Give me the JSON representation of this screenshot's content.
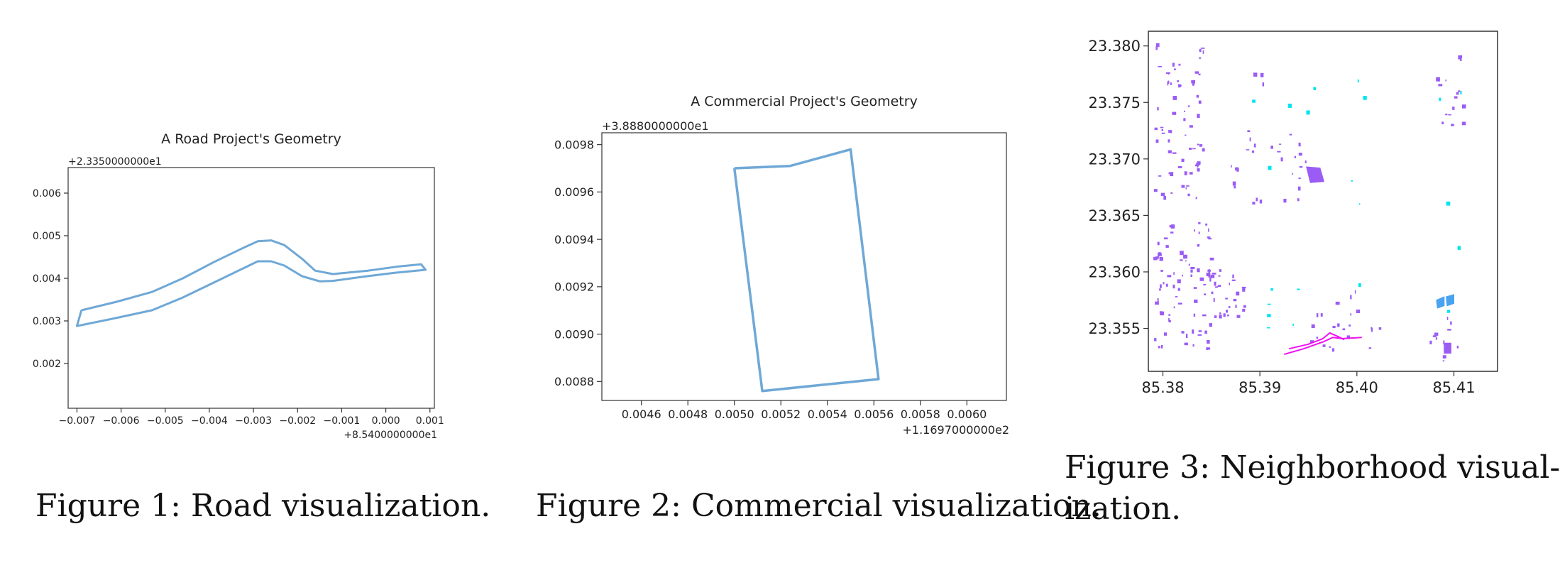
{
  "captions": {
    "fig1": "Figure 1: Road visualization.",
    "fig2": "Figure 2: Commercial visualization.",
    "fig3_line1": "Figure 3: Neighborhood visual-",
    "fig3_line2": "ization."
  },
  "colors": {
    "outline": "#6fa8d6",
    "neighborhood_purple": "#9a5cf5",
    "neighborhood_cyan": "#00e5f0",
    "neighborhood_blue": "#4aa3f0",
    "neighborhood_magenta": "#f010f0"
  },
  "chart_data": [
    {
      "type": "line",
      "title": "A Road Project's Geometry",
      "x_offset_label": "+8.5400000000e1",
      "y_offset_label": "+2.3350000000e1",
      "xlim": [
        -0.0072,
        0.0011
      ],
      "ylim": [
        0.00095,
        0.0066
      ],
      "x_ticks": [
        -0.007,
        -0.006,
        -0.005,
        -0.004,
        -0.003,
        -0.002,
        -0.001,
        0.0,
        0.001
      ],
      "x_tick_labels": [
        "−0.007",
        "−0.006",
        "−0.005",
        "−0.004",
        "−0.003",
        "−0.002",
        "−0.001",
        "0.000",
        "0.001"
      ],
      "y_ticks": [
        0.002,
        0.003,
        0.004,
        0.005,
        0.006
      ],
      "y_tick_labels": [
        "0.002",
        "0.003",
        "0.004",
        "0.005",
        "0.006"
      ],
      "series": [
        {
          "x": [
            -0.0069,
            -0.0061,
            -0.0053,
            -0.0046,
            -0.0039,
            -0.0032,
            -0.0029,
            -0.0026,
            -0.0023,
            -0.0019,
            -0.0016,
            -0.0012,
            -0.0004,
            0.0003,
            0.0008,
            0.0009,
            0.0002,
            -0.0005,
            -0.0012,
            -0.0015,
            -0.0019,
            -0.0023,
            -0.0026,
            -0.0029,
            -0.0032,
            -0.0039,
            -0.0046,
            -0.0053,
            -0.0062,
            -0.007,
            -0.0069
          ],
          "y": [
            0.00325,
            0.00345,
            0.00368,
            0.004,
            0.00438,
            0.00473,
            0.00487,
            0.00489,
            0.00478,
            0.00446,
            0.00418,
            0.0041,
            0.00418,
            0.00428,
            0.00433,
            0.0042,
            0.00413,
            0.00404,
            0.00394,
            0.00393,
            0.00405,
            0.0043,
            0.0044,
            0.0044,
            0.00425,
            0.0039,
            0.00355,
            0.00325,
            0.00305,
            0.00288,
            0.00325
          ]
        }
      ]
    },
    {
      "type": "line",
      "title": "A Commercial Project's Geometry",
      "x_offset_label": "+1.1697000000e2",
      "y_offset_label": "+3.8880000000e1",
      "xlim": [
        0.00443,
        0.00617
      ],
      "ylim": [
        0.00872,
        0.00985
      ],
      "x_ticks": [
        0.0046,
        0.0048,
        0.005,
        0.0052,
        0.0054,
        0.0056,
        0.0058,
        0.006
      ],
      "x_tick_labels": [
        "0.0046",
        "0.0048",
        "0.0050",
        "0.0052",
        "0.0054",
        "0.0056",
        "0.0058",
        "0.0060"
      ],
      "y_ticks": [
        0.0088,
        0.009,
        0.0092,
        0.0094,
        0.0096,
        0.0098
      ],
      "y_tick_labels": [
        "0.0088",
        "0.0090",
        "0.0092",
        "0.0094",
        "0.0096",
        "0.0098"
      ],
      "series": [
        {
          "x": [
            0.005,
            0.00524,
            0.0055,
            0.00562,
            0.00512,
            0.005
          ],
          "y": [
            0.0097,
            0.00971,
            0.00978,
            0.00881,
            0.00876,
            0.0097
          ]
        }
      ]
    },
    {
      "type": "scatter",
      "title": "",
      "xlim": [
        85.3785,
        85.4145
      ],
      "ylim": [
        23.3512,
        23.3813
      ],
      "x_ticks": [
        85.38,
        85.39,
        85.4,
        85.41
      ],
      "x_tick_labels": [
        "85.38",
        "85.39",
        "85.40",
        "85.41"
      ],
      "y_ticks": [
        23.355,
        23.36,
        23.365,
        23.37,
        23.375,
        23.38
      ],
      "y_tick_labels": [
        "23.355",
        "23.360",
        "23.365",
        "23.370",
        "23.375",
        "23.380"
      ],
      "clusters": [
        {
          "color": "purple",
          "x_range": [
            85.3792,
            85.3842
          ],
          "y_range": [
            23.3665,
            23.3805
          ],
          "count": 70
        },
        {
          "color": "purple",
          "x_range": [
            85.3792,
            85.3852
          ],
          "y_range": [
            23.3528,
            23.3645
          ],
          "count": 80
        },
        {
          "color": "purple",
          "x_range": [
            85.3845,
            85.3885
          ],
          "y_range": [
            23.356,
            23.3605
          ],
          "count": 30
        },
        {
          "color": "purple",
          "x_range": [
            85.3855,
            85.395
          ],
          "y_range": [
            23.366,
            23.3725
          ],
          "count": 28
        },
        {
          "color": "purple",
          "x_range": [
            85.3945,
            85.4025
          ],
          "y_range": [
            23.353,
            23.3585
          ],
          "count": 22
        },
        {
          "color": "purple",
          "x_range": [
            85.4075,
            85.4105
          ],
          "y_range": [
            23.352,
            23.356
          ],
          "count": 14
        },
        {
          "color": "purple",
          "x_range": [
            85.4085,
            85.4112
          ],
          "y_range": [
            23.373,
            23.376
          ],
          "count": 10
        },
        {
          "color": "purple",
          "x_range": [
            85.408,
            85.4092
          ],
          "y_range": [
            23.3765,
            23.378
          ],
          "count": 3
        },
        {
          "color": "purple",
          "x_range": [
            85.4103,
            85.4112
          ],
          "y_range": [
            23.3785,
            23.3795
          ],
          "count": 3
        },
        {
          "color": "purple",
          "x_range": [
            85.3895,
            85.3905
          ],
          "y_range": [
            23.3762,
            23.3775
          ],
          "count": 3
        },
        {
          "color": "cyan",
          "x_range": [
            85.388,
            85.401
          ],
          "y_range": [
            23.3545,
            23.378
          ],
          "count": 16
        },
        {
          "color": "cyan",
          "x_range": [
            85.4085,
            85.411
          ],
          "y_range": [
            23.3545,
            23.379
          ],
          "count": 6
        }
      ],
      "shapes": [
        {
          "color": "purple",
          "x": [
            85.3948,
            85.3962,
            85.3966,
            85.3952
          ],
          "y": [
            23.3693,
            23.3692,
            23.368,
            23.3679
          ]
        },
        {
          "color": "blue",
          "x": [
            85.4082,
            85.409,
            85.409,
            85.4083
          ],
          "y": [
            23.3575,
            23.3578,
            23.357,
            23.3568
          ]
        },
        {
          "color": "blue",
          "x": [
            85.4092,
            85.41,
            85.41,
            85.4093
          ],
          "y": [
            23.3578,
            23.358,
            23.3572,
            23.357
          ]
        },
        {
          "color": "purple",
          "x": [
            85.409,
            85.4097,
            85.4097,
            85.409
          ],
          "y": [
            23.3537,
            23.3537,
            23.3528,
            23.3528
          ]
        }
      ],
      "lines": [
        {
          "color": "magenta",
          "x": [
            85.3925,
            85.3945,
            85.3965,
            85.3975,
            85.3985,
            85.4005
          ],
          "y": [
            23.3527,
            23.3532,
            23.3538,
            23.3542,
            23.3541,
            23.3542
          ]
        },
        {
          "color": "magenta",
          "x": [
            85.393,
            85.395,
            85.3965,
            85.3972,
            85.398,
            85.3987
          ],
          "y": [
            23.3532,
            23.3536,
            23.3541,
            23.3546,
            23.3543,
            23.354
          ]
        }
      ]
    }
  ]
}
